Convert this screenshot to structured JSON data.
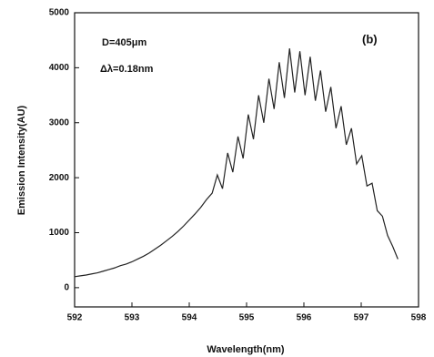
{
  "chart_data": {
    "type": "line",
    "x_label": "Wavelength(nm)",
    "y_label": "Emission Intensity(AU)",
    "annotations": [
      "D=405μm",
      "Δλ=0.18nm",
      "(b)"
    ],
    "xlim": [
      592,
      598
    ],
    "xticks": [
      592,
      593,
      594,
      595,
      596,
      597,
      598
    ],
    "ylim": [
      -350,
      5000
    ],
    "yticks": [
      0,
      1000,
      2000,
      3000,
      4000,
      5000
    ],
    "grid": false,
    "series": [
      {
        "color": "#222222",
        "x": [
          592.0,
          592.1,
          592.2,
          592.3,
          592.4,
          592.5,
          592.6,
          592.7,
          592.8,
          592.9,
          593.0,
          593.1,
          593.2,
          593.3,
          593.4,
          593.5,
          593.6,
          593.7,
          593.8,
          593.9,
          594.0,
          594.1,
          594.2,
          594.3,
          594.4,
          594.49,
          594.58,
          594.67,
          594.76,
          594.85,
          594.94,
          595.03,
          595.12,
          595.21,
          595.3,
          595.39,
          595.48,
          595.57,
          595.66,
          595.75,
          595.84,
          595.93,
          596.02,
          596.11,
          596.2,
          596.29,
          596.38,
          596.47,
          596.56,
          596.65,
          596.74,
          596.83,
          596.92,
          597.01,
          597.1,
          597.19,
          597.28,
          597.37,
          597.46,
          597.55,
          597.64
        ],
        "values": [
          200,
          215,
          230,
          250,
          270,
          300,
          330,
          360,
          400,
          430,
          470,
          520,
          570,
          630,
          700,
          770,
          850,
          930,
          1020,
          1120,
          1230,
          1340,
          1460,
          1600,
          1720,
          2050,
          1800,
          2450,
          2100,
          2750,
          2350,
          3150,
          2700,
          3500,
          3000,
          3800,
          3250,
          4100,
          3450,
          4350,
          3550,
          4300,
          3500,
          4200,
          3400,
          3950,
          3200,
          3650,
          2900,
          3300,
          2600,
          2900,
          2250,
          2400,
          1850,
          1900,
          1400,
          1300,
          950,
          750,
          520
        ]
      }
    ]
  }
}
